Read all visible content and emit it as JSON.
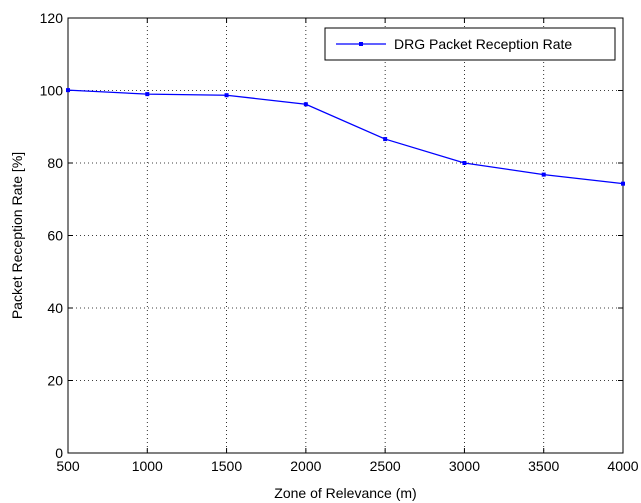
{
  "chart_data": {
    "type": "line",
    "title": "",
    "xlabel": "Zone of Relevance (m)",
    "ylabel": "Packet Reception Rate [%]",
    "xlim": [
      500,
      4000
    ],
    "ylim": [
      0,
      120
    ],
    "xticks": [
      500,
      1000,
      1500,
      2000,
      2500,
      3000,
      3500,
      4000
    ],
    "yticks": [
      0,
      20,
      40,
      60,
      80,
      100,
      120
    ],
    "grid": true,
    "grid_style": "dotted",
    "legend_position": "top-right",
    "series": [
      {
        "name": "DRG Packet Reception Rate",
        "color": "#0000ff",
        "marker": "point",
        "x": [
          500,
          1000,
          1500,
          2000,
          2500,
          3000,
          3500,
          4000
        ],
        "values": [
          100.1,
          99.0,
          98.7,
          96.2,
          86.6,
          80.0,
          76.8,
          74.3
        ]
      }
    ]
  }
}
